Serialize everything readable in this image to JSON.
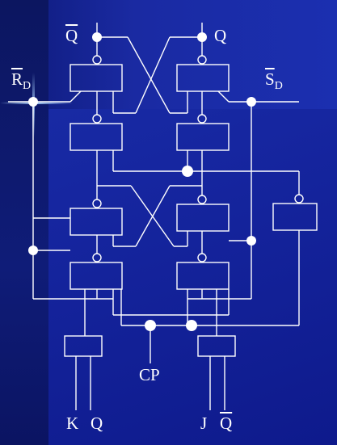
{
  "labels": {
    "q_bar_top": "Q",
    "q_top": "Q",
    "rd_main": "R",
    "rd_sub": "D",
    "sd_main": "S",
    "sd_sub": "D",
    "cp": "CP",
    "k": "K",
    "q_bottom": "Q",
    "j": "J",
    "q_bar_bottom": "Q"
  },
  "colors": {
    "wire": "#ffffff",
    "background": "#1626a0"
  }
}
